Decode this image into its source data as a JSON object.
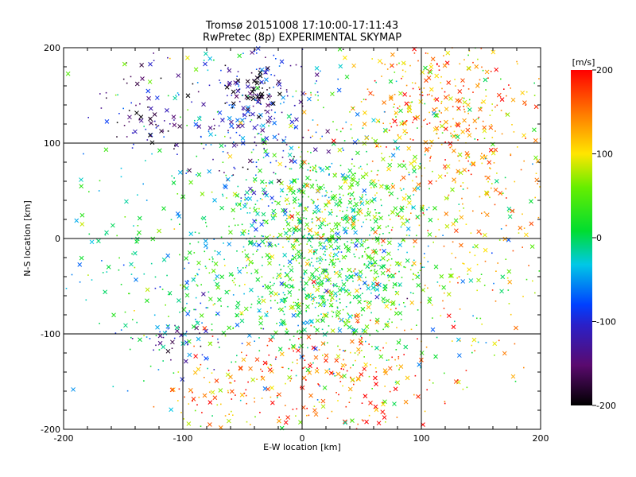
{
  "chart_data": {
    "type": "scatter",
    "title": "Tromsø 20151008 17:10:00-17:11:43",
    "subtitle": "RwPretec (8p) EXPERIMENTAL SKYMAP",
    "xlabel": "E-W location [km]",
    "ylabel": "N-S location [km]",
    "xlim": [
      -200,
      200
    ],
    "ylim": [
      -200,
      200
    ],
    "xticks": [
      "-200",
      "-100",
      "0",
      "100",
      "200"
    ],
    "yticks": [
      "-200",
      "-100",
      "0",
      "100",
      "200"
    ],
    "grid": true,
    "colorbar": {
      "unit": "[m/s]",
      "min": -200,
      "max": 200,
      "ticks": [
        "200",
        "100",
        "0",
        "-100",
        "-200"
      ],
      "colormap": "rainbow-black-purple-blue-cyan-green-yellow-red"
    },
    "markers": [
      "dot",
      "x"
    ],
    "clusters": [
      {
        "x": 20,
        "y": -40,
        "sx": 45,
        "sy": 40,
        "n": 700,
        "v": 20
      },
      {
        "x": 10,
        "y": 40,
        "sx": 45,
        "sy": 35,
        "n": 350,
        "v": 30
      },
      {
        "x": -40,
        "y": 120,
        "sx": 30,
        "sy": 45,
        "n": 220,
        "v": -100
      },
      {
        "x": -45,
        "y": 155,
        "sx": 15,
        "sy": 12,
        "n": 90,
        "v": -170
      },
      {
        "x": 115,
        "y": 140,
        "sx": 35,
        "sy": 40,
        "n": 280,
        "v": 150
      },
      {
        "x": 130,
        "y": 80,
        "sx": 60,
        "sy": 50,
        "n": 150,
        "v": 120
      },
      {
        "x": -130,
        "y": 130,
        "sx": 25,
        "sy": 25,
        "n": 80,
        "v": -140
      },
      {
        "x": -110,
        "y": -110,
        "sx": 20,
        "sy": 15,
        "n": 40,
        "v": -110
      },
      {
        "x": 20,
        "y": -150,
        "sx": 45,
        "sy": 35,
        "n": 220,
        "v": 160
      },
      {
        "x": -70,
        "y": -170,
        "sx": 25,
        "sy": 20,
        "n": 60,
        "v": 140
      },
      {
        "x": -100,
        "y": -50,
        "sx": 40,
        "sy": 40,
        "n": 120,
        "v": -10
      },
      {
        "x": 0,
        "y": 0,
        "sx": 120,
        "sy": 120,
        "n": 500,
        "v": 0
      },
      {
        "x": 110,
        "y": 0,
        "sx": 50,
        "sy": 80,
        "n": 250,
        "v": 120
      }
    ]
  }
}
